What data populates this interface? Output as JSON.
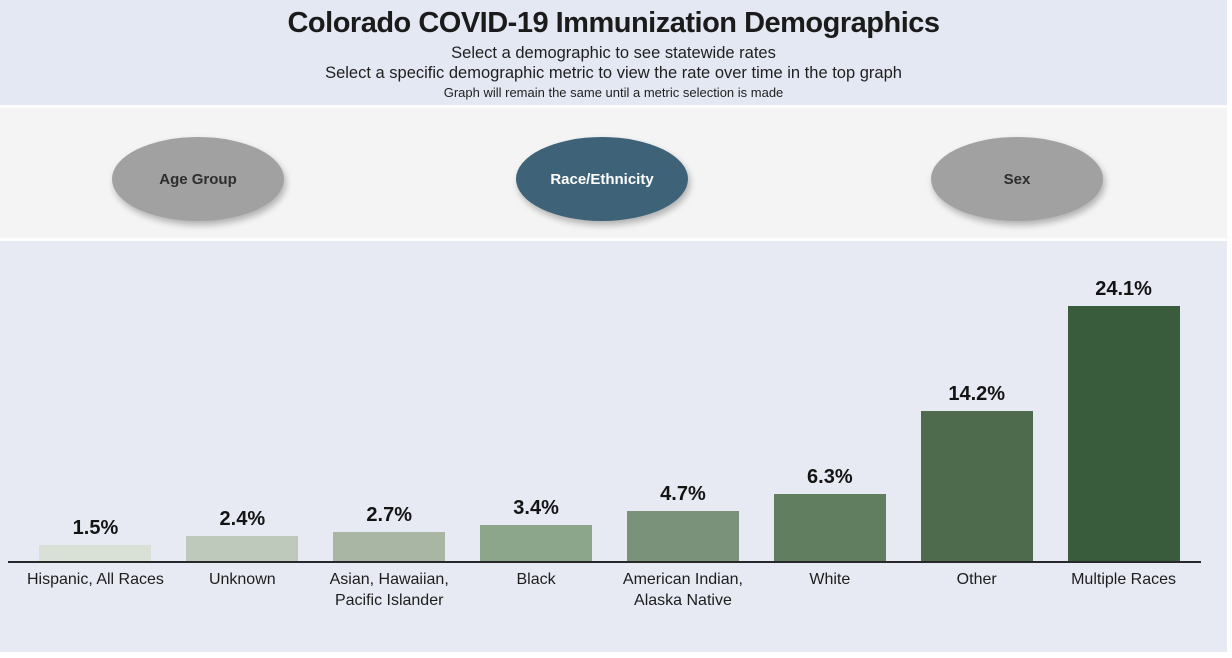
{
  "header": {
    "title": "Colorado COVID-19 Immunization Demographics",
    "subtitle1": "Select a demographic to see statewide rates",
    "subtitle2": "Select a specific demographic metric to view the rate over time in the top graph",
    "subtitle3": "Graph will remain the same until a metric selection is made"
  },
  "demographic_buttons": [
    {
      "label": "Age Group",
      "selected": false
    },
    {
      "label": "Race/Ethnicity",
      "selected": true
    },
    {
      "label": "Sex",
      "selected": false
    }
  ],
  "chart_data": {
    "type": "bar",
    "categories": [
      "Hispanic, All Races",
      "Unknown",
      "Asian, Hawaiian, Pacific Islander",
      "Black",
      "American Indian, Alaska Native",
      "White",
      "Other",
      "Multiple Races"
    ],
    "values": [
      1.5,
      2.4,
      2.7,
      3.4,
      4.7,
      6.3,
      14.2,
      24.1
    ],
    "value_labels": [
      "1.5%",
      "2.4%",
      "2.7%",
      "3.4%",
      "4.7%",
      "6.3%",
      "14.2%",
      "24.1%"
    ],
    "bar_colors": [
      "#d9e0d5",
      "#bfc9bb",
      "#a8b6a3",
      "#8ca68c",
      "#7b927a",
      "#617e61",
      "#4e6c4d",
      "#395c3d"
    ],
    "title": "",
    "xlabel": "",
    "ylabel": "",
    "ylim": [
      0,
      25.5
    ],
    "grid": false,
    "legend": "none",
    "data_labels": "above bars"
  },
  "colors": {
    "header_bg": "#e4e8f2",
    "button_band_bg": "#f4f4f4",
    "chart_bg": "#e7eaf3",
    "selected_button": "#3e6378",
    "unselected_button": "#a1a1a1",
    "axis": "#26282a",
    "text": "#1b1b1b"
  }
}
